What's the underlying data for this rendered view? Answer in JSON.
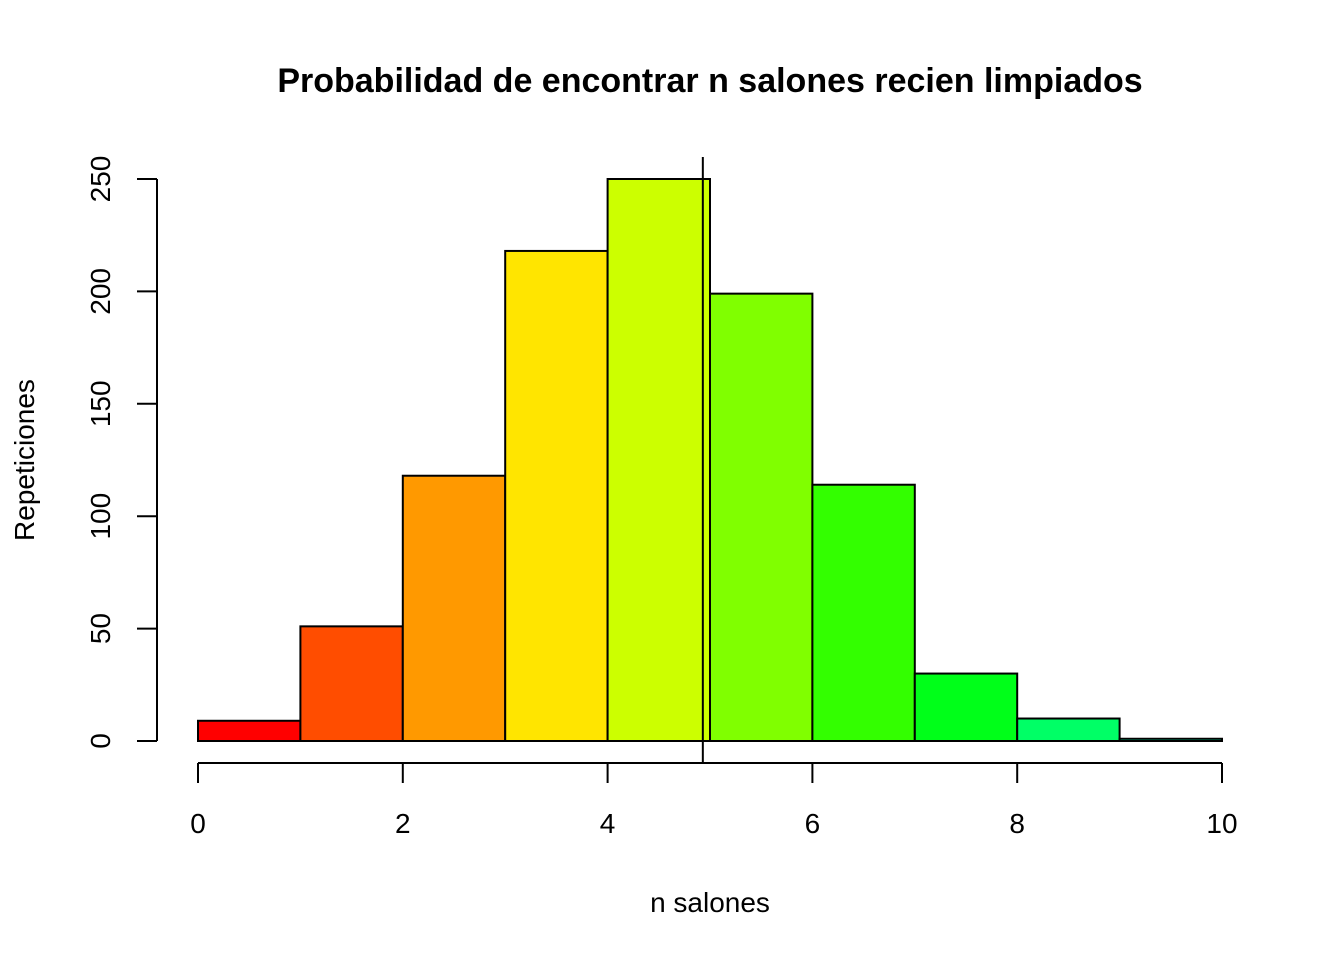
{
  "chart_data": {
    "type": "bar",
    "title": "Probabilidad de encontrar n salones recien limpiados",
    "xlabel": "n salones",
    "ylabel": "Repeticiones",
    "xlim": [
      0,
      10
    ],
    "ylim": [
      0,
      250
    ],
    "x_ticks": [
      "0",
      "2",
      "4",
      "6",
      "8",
      "10"
    ],
    "y_ticks": [
      "0",
      "50",
      "100",
      "150",
      "200",
      "250"
    ],
    "bins": [
      {
        "start": 0,
        "end": 1,
        "value": 9,
        "color": "#ff0000"
      },
      {
        "start": 1,
        "end": 2,
        "value": 51,
        "color": "#ff4d00"
      },
      {
        "start": 2,
        "end": 3,
        "value": 118,
        "color": "#ff9900"
      },
      {
        "start": 3,
        "end": 4,
        "value": 218,
        "color": "#ffe500"
      },
      {
        "start": 4,
        "end": 5,
        "value": 250,
        "color": "#ccff00"
      },
      {
        "start": 5,
        "end": 6,
        "value": 199,
        "color": "#80ff00"
      },
      {
        "start": 6,
        "end": 7,
        "value": 114,
        "color": "#33ff00"
      },
      {
        "start": 7,
        "end": 8,
        "value": 30,
        "color": "#00ff19"
      },
      {
        "start": 8,
        "end": 9,
        "value": 10,
        "color": "#00ff66"
      },
      {
        "start": 9,
        "end": 10,
        "value": 1,
        "color": "#00ffb2"
      }
    ],
    "reference_line_x": 4.93,
    "grid": false,
    "legend": "none"
  }
}
